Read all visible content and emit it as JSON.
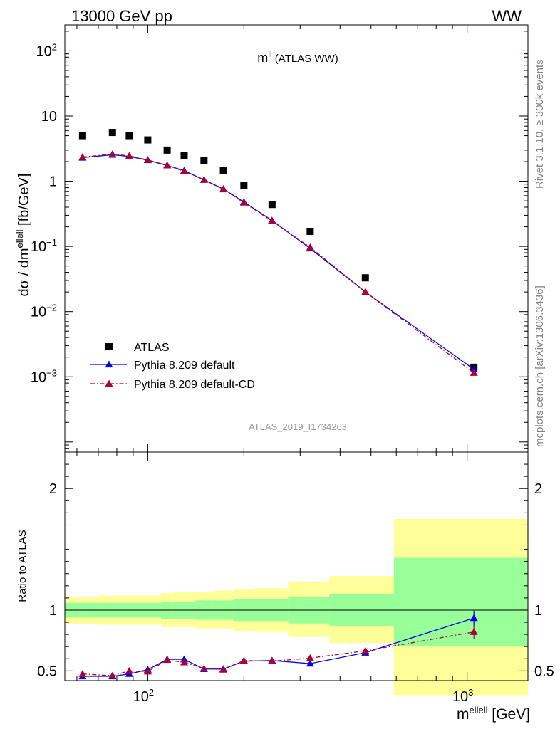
{
  "header": {
    "left": "13000 GeV pp",
    "right": "WW"
  },
  "plot_title": {
    "main": "m",
    "sup": "ll",
    "suffix": " (ATLAS WW)"
  },
  "watermark": "ATLAS_2019_I1734263",
  "side_text": {
    "upper": "Rivet 3.1.10, ≥ 300k events",
    "lower": "mcplots.cern.ch [arXiv:1306.3436]"
  },
  "colors": {
    "data": "#000000",
    "pythia_default": "#0000dd",
    "pythia_cd": "#aa0033",
    "band_outer": "#ffff99",
    "band_inner": "#99ff99"
  },
  "chart_data": [
    {
      "type": "scatter",
      "panel": "main",
      "ylabel": {
        "pre": "dσ / dm",
        "sup": "ellell",
        "post": " [fb/GeV]"
      },
      "xscale": "log",
      "yscale": "log",
      "xlim": [
        55,
        1550
      ],
      "ylim": [
        7e-05,
        250
      ],
      "y_ticks": [
        {
          "value": 0.001,
          "base": "10",
          "exp": "−3"
        },
        {
          "value": 0.01,
          "base": "10",
          "exp": "−2"
        },
        {
          "value": 0.1,
          "base": "10",
          "exp": "−1"
        },
        {
          "value": 1,
          "base": "1",
          "exp": ""
        },
        {
          "value": 10,
          "base": "10",
          "exp": ""
        },
        {
          "value": 100,
          "base": "10",
          "exp": "2"
        }
      ],
      "legend_position": "bottom-left",
      "series": [
        {
          "name": "ATLAS",
          "marker": "square",
          "x": [
            62.5,
            77.5,
            87.5,
            100,
            115,
            130,
            150,
            172.5,
            200,
            245,
            322.5,
            480,
            1050
          ],
          "values": [
            5.0,
            5.6,
            5.0,
            4.3,
            3.0,
            2.5,
            2.05,
            1.48,
            0.85,
            0.44,
            0.17,
            0.033,
            0.0014
          ]
        },
        {
          "name": "Pythia 8.209 default",
          "marker": "triangle",
          "line": "solid",
          "x": [
            62.5,
            77.5,
            87.5,
            100,
            115,
            130,
            150,
            172.5,
            200,
            245,
            322.5,
            480,
            1050
          ],
          "values": [
            2.3,
            2.55,
            2.4,
            2.1,
            1.75,
            1.45,
            1.05,
            0.76,
            0.48,
            0.25,
            0.093,
            0.02,
            0.0013
          ]
        },
        {
          "name": "Pythia 8.209 default-CD",
          "marker": "triangle",
          "line": "dashdot",
          "x": [
            62.5,
            77.5,
            87.5,
            100,
            115,
            130,
            150,
            172.5,
            200,
            245,
            322.5,
            480,
            1050
          ],
          "values": [
            2.35,
            2.6,
            2.45,
            2.12,
            1.75,
            1.42,
            1.05,
            0.75,
            0.47,
            0.245,
            0.097,
            0.02,
            0.00115
          ]
        }
      ]
    },
    {
      "type": "line",
      "panel": "ratio",
      "ylabel": "Ratio to ATLAS",
      "xlabel": {
        "pre": "m",
        "sup": "ellell",
        "post": " [GeV]"
      },
      "xscale": "log",
      "xlim": [
        55,
        1550
      ],
      "ylim": [
        0.42,
        2.3
      ],
      "y_ticks": [
        "0.5",
        "1",
        "2"
      ],
      "x_ticks": [
        {
          "value": 100,
          "base": "10",
          "exp": "2"
        },
        {
          "value": 1000,
          "base": "10",
          "exp": "3"
        }
      ],
      "reference_line": 1,
      "bands": {
        "edges": [
          55,
          70,
          85,
          90,
          110,
          120,
          140,
          160,
          185,
          215,
          275,
          370,
          590,
          1550
        ],
        "outer_low": [
          0.89,
          0.88,
          0.88,
          0.88,
          0.86,
          0.86,
          0.85,
          0.85,
          0.83,
          0.82,
          0.78,
          0.73,
          0.3
        ],
        "outer_high": [
          1.11,
          1.12,
          1.12,
          1.12,
          1.14,
          1.15,
          1.15,
          1.16,
          1.17,
          1.18,
          1.23,
          1.28,
          1.75
        ],
        "inner_low": [
          0.94,
          0.94,
          0.94,
          0.94,
          0.93,
          0.93,
          0.92,
          0.92,
          0.91,
          0.91,
          0.89,
          0.87,
          0.7
        ],
        "inner_high": [
          1.06,
          1.06,
          1.06,
          1.06,
          1.07,
          1.07,
          1.08,
          1.08,
          1.09,
          1.09,
          1.11,
          1.13,
          1.43
        ]
      },
      "series": [
        {
          "name": "Pythia 8.209 default",
          "marker": "triangle",
          "line": "solid",
          "x": [
            62.5,
            77.5,
            87.5,
            100,
            115,
            130,
            150,
            172.5,
            200,
            245,
            322.5,
            480,
            1050
          ],
          "values": [
            0.455,
            0.455,
            0.475,
            0.51,
            0.595,
            0.595,
            0.515,
            0.515,
            0.58,
            0.585,
            0.56,
            0.65,
            0.935
          ],
          "errors": [
            0.01,
            0.01,
            0.01,
            0.01,
            0.01,
            0.01,
            0.01,
            0.01,
            0.01,
            0.015,
            0.01,
            0.02,
            0.06
          ]
        },
        {
          "name": "Pythia 8.209 default-CD",
          "marker": "triangle",
          "line": "dashdot",
          "x": [
            62.5,
            77.5,
            87.5,
            100,
            115,
            130,
            150,
            172.5,
            200,
            245,
            322.5,
            480,
            1050
          ],
          "values": [
            0.475,
            0.46,
            0.5,
            0.495,
            0.59,
            0.57,
            0.52,
            0.51,
            0.585,
            0.58,
            0.605,
            0.665,
            0.82
          ],
          "errors": [
            0.01,
            0.01,
            0.01,
            0.01,
            0.01,
            0.01,
            0.01,
            0.01,
            0.01,
            0.015,
            0.015,
            0.02,
            0.06
          ]
        }
      ]
    }
  ]
}
